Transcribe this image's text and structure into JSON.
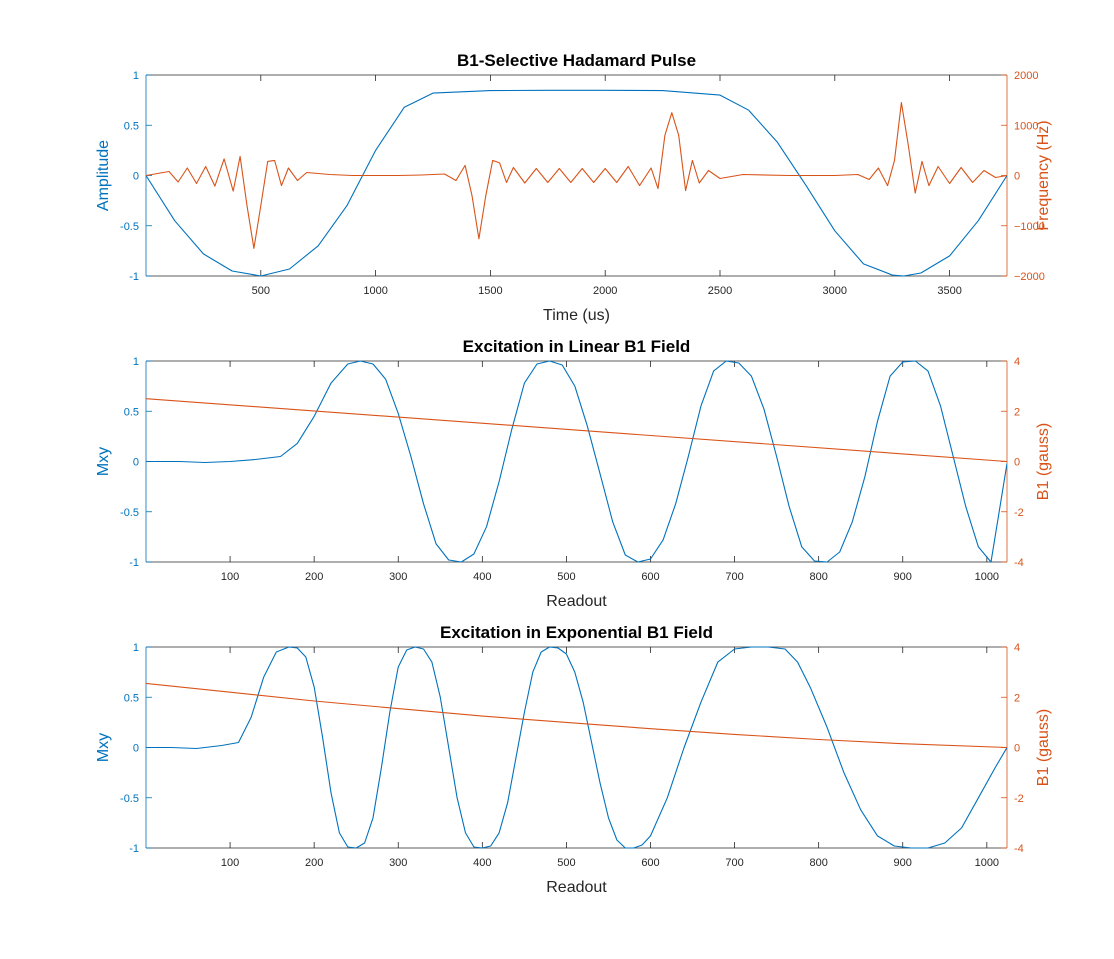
{
  "colors": {
    "left_axis": "#0072BD",
    "right_axis": "#D95319",
    "frame": "#262626",
    "background": "#FFFFFF"
  },
  "chart_data": [
    {
      "type": "line",
      "title": "B1-Selective Hadamard Pulse",
      "xlabel": "Time (us)",
      "ylabel_left": "Amplitude",
      "ylabel_right": "Frequency (Hz)",
      "xlim": [
        0,
        3750
      ],
      "ylim_left": [
        -1,
        1
      ],
      "ylim_right": [
        -2000,
        2000
      ],
      "xticks": [
        500,
        1000,
        1500,
        2000,
        2500,
        3000,
        3500
      ],
      "xtick_labels": [
        "500",
        "1000",
        "1500",
        "2000",
        "2500",
        "3000",
        "3500"
      ],
      "yticks_left": [
        -1,
        -0.5,
        0,
        0.5,
        1
      ],
      "ytick_labels_left": [
        "-1",
        "-0.5",
        "0",
        "0.5",
        "1"
      ],
      "yticks_right": [
        -2000,
        -1000,
        0,
        1000,
        2000
      ],
      "ytick_labels_right": [
        "−2000",
        "−1000",
        "0",
        "1000",
        "2000"
      ],
      "series": [
        {
          "axis": "left",
          "color": "#0072BD",
          "x": [
            0,
            125,
            250,
            375,
            500,
            625,
            750,
            875,
            1000,
            1125,
            1250,
            1500,
            1750,
            2000,
            2250,
            2500,
            2625,
            2750,
            2875,
            3000,
            3125,
            3250,
            3300,
            3375,
            3500,
            3625,
            3750
          ],
          "y": [
            0,
            -0.45,
            -0.78,
            -0.95,
            -1.0,
            -0.93,
            -0.7,
            -0.3,
            0.25,
            0.68,
            0.82,
            0.845,
            0.848,
            0.848,
            0.845,
            0.8,
            0.65,
            0.33,
            -0.1,
            -0.55,
            -0.88,
            -0.99,
            -1.0,
            -0.97,
            -0.8,
            -0.45,
            0
          ]
        },
        {
          "axis": "right",
          "color": "#D95319",
          "x": [
            0,
            50,
            100,
            140,
            180,
            220,
            260,
            300,
            340,
            380,
            410,
            440,
            470,
            500,
            530,
            560,
            590,
            620,
            660,
            700,
            750,
            800,
            900,
            1000,
            1100,
            1200,
            1300,
            1350,
            1390,
            1420,
            1450,
            1480,
            1510,
            1540,
            1570,
            1600,
            1650,
            1700,
            1750,
            1800,
            1850,
            1900,
            1950,
            2000,
            2050,
            2100,
            2150,
            2200,
            2230,
            2260,
            2290,
            2320,
            2350,
            2380,
            2410,
            2450,
            2500,
            2600,
            2800,
            3000,
            3100,
            3150,
            3190,
            3230,
            3260,
            3290,
            3320,
            3350,
            3380,
            3410,
            3450,
            3500,
            3550,
            3600,
            3650,
            3700,
            3750
          ],
          "y": [
            0,
            40,
            80,
            -130,
            150,
            -160,
            180,
            -210,
            330,
            -310,
            380,
            -600,
            -1450,
            -600,
            280,
            300,
            -200,
            150,
            -100,
            60,
            40,
            20,
            0,
            0,
            0,
            10,
            30,
            -100,
            200,
            -400,
            -1260,
            -400,
            300,
            250,
            -140,
            160,
            -150,
            140,
            -140,
            140,
            -140,
            140,
            -140,
            140,
            -140,
            180,
            -200,
            150,
            -260,
            800,
            1250,
            800,
            -300,
            300,
            -150,
            100,
            -60,
            20,
            0,
            0,
            20,
            -80,
            150,
            -200,
            300,
            1450,
            600,
            -350,
            280,
            -200,
            180,
            -160,
            160,
            -140,
            100,
            -40,
            0
          ]
        }
      ]
    },
    {
      "type": "line",
      "title": "Excitation in Linear B1 Field",
      "xlabel": "Readout",
      "ylabel_left": "Mxy",
      "ylabel_right": "B1 (gauss)",
      "xlim": [
        0,
        1024
      ],
      "ylim_left": [
        -1,
        1
      ],
      "ylim_right": [
        -4,
        4
      ],
      "xticks": [
        100,
        200,
        300,
        400,
        500,
        600,
        700,
        800,
        900,
        1000
      ],
      "xtick_labels": [
        "100",
        "200",
        "300",
        "400",
        "500",
        "600",
        "700",
        "800",
        "900",
        "1000"
      ],
      "yticks_left": [
        -1,
        -0.5,
        0,
        0.5,
        1
      ],
      "ytick_labels_left": [
        "-1",
        "-0.5",
        "0",
        "0.5",
        "1"
      ],
      "yticks_right": [
        -4,
        -2,
        0,
        2,
        4
      ],
      "ytick_labels_right": [
        "-4",
        "-2",
        "0",
        "2",
        "4"
      ],
      "series": [
        {
          "axis": "left",
          "color": "#0072BD",
          "x": [
            0,
            40,
            70,
            100,
            130,
            160,
            180,
            200,
            220,
            240,
            255,
            270,
            285,
            300,
            315,
            330,
            345,
            360,
            375,
            390,
            405,
            420,
            435,
            450,
            465,
            480,
            495,
            510,
            525,
            540,
            555,
            570,
            585,
            600,
            615,
            630,
            645,
            660,
            675,
            690,
            705,
            720,
            735,
            750,
            765,
            780,
            795,
            810,
            825,
            840,
            855,
            870,
            885,
            900,
            915,
            930,
            945,
            960,
            975,
            990,
            1005,
            1024
          ],
          "y": [
            0,
            0,
            -0.01,
            0,
            0.02,
            0.05,
            0.18,
            0.45,
            0.78,
            0.97,
            1.0,
            0.97,
            0.82,
            0.48,
            0.05,
            -0.42,
            -0.82,
            -0.98,
            -1.0,
            -0.92,
            -0.65,
            -0.2,
            0.32,
            0.78,
            0.97,
            1.0,
            0.96,
            0.75,
            0.35,
            -0.12,
            -0.6,
            -0.93,
            -1.0,
            -0.97,
            -0.78,
            -0.42,
            0.05,
            0.55,
            0.9,
            1.0,
            0.98,
            0.85,
            0.52,
            0.05,
            -0.45,
            -0.85,
            -0.99,
            -1.0,
            -0.9,
            -0.6,
            -0.15,
            0.4,
            0.85,
            0.99,
            1.0,
            0.9,
            0.55,
            0.05,
            -0.45,
            -0.85,
            -1.0,
            -0.02
          ]
        },
        {
          "axis": "right",
          "color": "#D95319",
          "x": [
            0,
            1024
          ],
          "y": [
            2.5,
            0
          ]
        }
      ]
    },
    {
      "type": "line",
      "title": "Excitation in Exponential B1 Field",
      "xlabel": "Readout",
      "ylabel_left": "Mxy",
      "ylabel_right": "B1 (gauss)",
      "xlim": [
        0,
        1024
      ],
      "ylim_left": [
        -1,
        1
      ],
      "ylim_right": [
        -4,
        4
      ],
      "xticks": [
        100,
        200,
        300,
        400,
        500,
        600,
        700,
        800,
        900,
        1000
      ],
      "xtick_labels": [
        "100",
        "200",
        "300",
        "400",
        "500",
        "600",
        "700",
        "800",
        "900",
        "1000"
      ],
      "yticks_left": [
        -1,
        -0.5,
        0,
        0.5,
        1
      ],
      "ytick_labels_left": [
        "-1",
        "-0.5",
        "0",
        "0.5",
        "1"
      ],
      "yticks_right": [
        -4,
        -2,
        0,
        2,
        4
      ],
      "ytick_labels_right": [
        "-4",
        "-2",
        "0",
        "2",
        "4"
      ],
      "series": [
        {
          "axis": "left",
          "color": "#0072BD",
          "x": [
            0,
            30,
            60,
            90,
            110,
            125,
            140,
            155,
            170,
            180,
            190,
            200,
            210,
            220,
            230,
            240,
            250,
            260,
            270,
            280,
            290,
            300,
            310,
            320,
            330,
            340,
            350,
            360,
            370,
            380,
            390,
            400,
            410,
            420,
            430,
            440,
            450,
            460,
            470,
            480,
            490,
            500,
            510,
            520,
            530,
            540,
            550,
            560,
            570,
            580,
            590,
            600,
            620,
            640,
            660,
            680,
            700,
            720,
            740,
            760,
            775,
            790,
            810,
            830,
            850,
            870,
            890,
            910,
            930,
            950,
            970,
            990,
            1010,
            1024
          ],
          "y": [
            0,
            0,
            -0.01,
            0.02,
            0.05,
            0.3,
            0.7,
            0.95,
            1.0,
            0.99,
            0.9,
            0.6,
            0.1,
            -0.45,
            -0.85,
            -0.99,
            -1.0,
            -0.95,
            -0.7,
            -0.2,
            0.35,
            0.8,
            0.97,
            1.0,
            0.98,
            0.85,
            0.5,
            0.0,
            -0.5,
            -0.85,
            -0.99,
            -1.0,
            -0.98,
            -0.85,
            -0.55,
            -0.1,
            0.35,
            0.75,
            0.95,
            1.0,
            0.99,
            0.93,
            0.75,
            0.45,
            0.05,
            -0.35,
            -0.7,
            -0.92,
            -1.0,
            -1.0,
            -0.97,
            -0.88,
            -0.5,
            0.0,
            0.45,
            0.85,
            0.98,
            1.0,
            1.0,
            0.98,
            0.85,
            0.6,
            0.2,
            -0.25,
            -0.62,
            -0.88,
            -0.98,
            -1.0,
            -1.0,
            -0.95,
            -0.8,
            -0.5,
            -0.2,
            0
          ]
        },
        {
          "axis": "right",
          "color": "#D95319",
          "x": [
            0,
            100,
            200,
            300,
            400,
            500,
            600,
            700,
            800,
            900,
            1024
          ],
          "y": [
            2.55,
            2.2,
            1.85,
            1.55,
            1.25,
            1.0,
            0.75,
            0.52,
            0.32,
            0.15,
            0.0
          ]
        }
      ]
    }
  ]
}
